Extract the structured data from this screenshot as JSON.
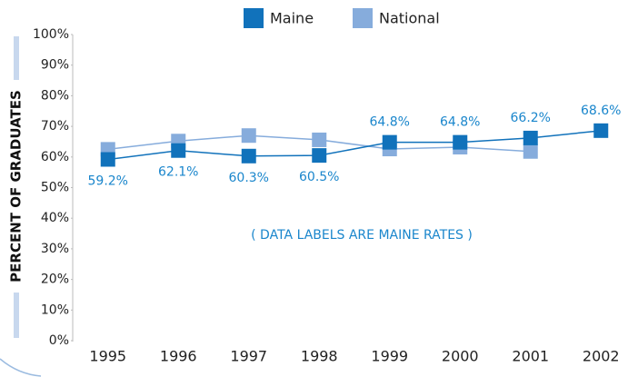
{
  "chart_data": {
    "type": "line",
    "y_label": "PERCENT OF GRADUATES",
    "annotation": "( DATA LABELS ARE MAINE RATES )",
    "categories": [
      "1995",
      "1996",
      "1997",
      "1998",
      "1999",
      "2000",
      "2001",
      "2002"
    ],
    "series": [
      {
        "name": "Maine",
        "color": "#1172bb",
        "values": [
          59.2,
          62.1,
          60.3,
          60.5,
          64.8,
          64.8,
          66.2,
          68.6
        ],
        "value_labels": [
          "59.2%",
          "62.1%",
          "60.3%",
          "60.5%",
          "64.8%",
          "64.8%",
          "66.2%",
          "68.6%"
        ]
      },
      {
        "name": "National",
        "color": "#86acdc",
        "values": [
          62.5,
          65.2,
          67,
          65.6,
          62.6,
          63.2,
          61.8,
          null
        ]
      }
    ],
    "ylim": [
      0,
      100
    ],
    "yticks": [
      {
        "value": 0,
        "label": "0%"
      },
      {
        "value": 10,
        "label": "10%"
      },
      {
        "value": 20,
        "label": "20%"
      },
      {
        "value": 30,
        "label": "30%"
      },
      {
        "value": 40,
        "label": "40%"
      },
      {
        "value": 50,
        "label": "50%"
      },
      {
        "value": 60,
        "label": "60%"
      },
      {
        "value": 70,
        "label": "70%"
      },
      {
        "value": 80,
        "label": "80%"
      },
      {
        "value": 90,
        "label": "90%"
      },
      {
        "value": 100,
        "label": "100%"
      }
    ],
    "grid": false
  }
}
